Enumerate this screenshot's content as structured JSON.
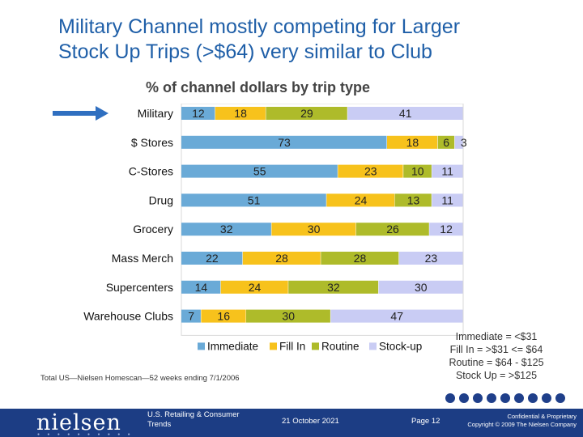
{
  "header": {
    "title_line1": "Military Channel mostly competing for Larger",
    "title_line2": "Stock Up Trips (>$64) very similar to Club"
  },
  "chart_data": {
    "type": "bar",
    "orientation": "horizontal-stacked-100",
    "title": "% of channel dollars by trip type",
    "categories": [
      "Military",
      "$ Stores",
      "C-Stores",
      "Drug",
      "Grocery",
      "Mass Merch",
      "Supercenters",
      "Warehouse Clubs"
    ],
    "series": [
      {
        "name": "Immediate",
        "color": "#6aaad7",
        "values": [
          12,
          73,
          55,
          51,
          32,
          22,
          14,
          7
        ]
      },
      {
        "name": "Fill In",
        "color": "#f7c21c",
        "values": [
          18,
          18,
          23,
          24,
          30,
          28,
          24,
          16
        ]
      },
      {
        "name": "Routine",
        "color": "#aebb2a",
        "values": [
          29,
          6,
          10,
          13,
          26,
          28,
          32,
          30
        ]
      },
      {
        "name": "Stock-up",
        "color": "#c9ccf4",
        "values": [
          41,
          3,
          11,
          11,
          12,
          23,
          30,
          47
        ]
      }
    ],
    "highlighted_category": "Military",
    "xlim": [
      0,
      100
    ],
    "legend_position": "bottom"
  },
  "legend_key": {
    "line1": "Immediate = <$31",
    "line2": "Fill In  = >$31 <= $64",
    "line3": "Routine = $64 - $125",
    "line4": "Stock Up = >$125"
  },
  "footnote": "Total US—Nielsen Homescan—52 weeks ending 7/1/2006",
  "footer": {
    "logo": "nielsen",
    "department_line1": "U.S. Retailing & Consumer",
    "department_line2": "Trends",
    "date": "21 October 2021",
    "page": "Page 12",
    "confidential": "Confidential & Proprietary",
    "copyright": "Copyright © 2009 The Nielsen Company"
  },
  "colors": {
    "title": "#1f5fa8",
    "arrow": "#2f6fc0",
    "footer_bg": "#1c3d84"
  }
}
